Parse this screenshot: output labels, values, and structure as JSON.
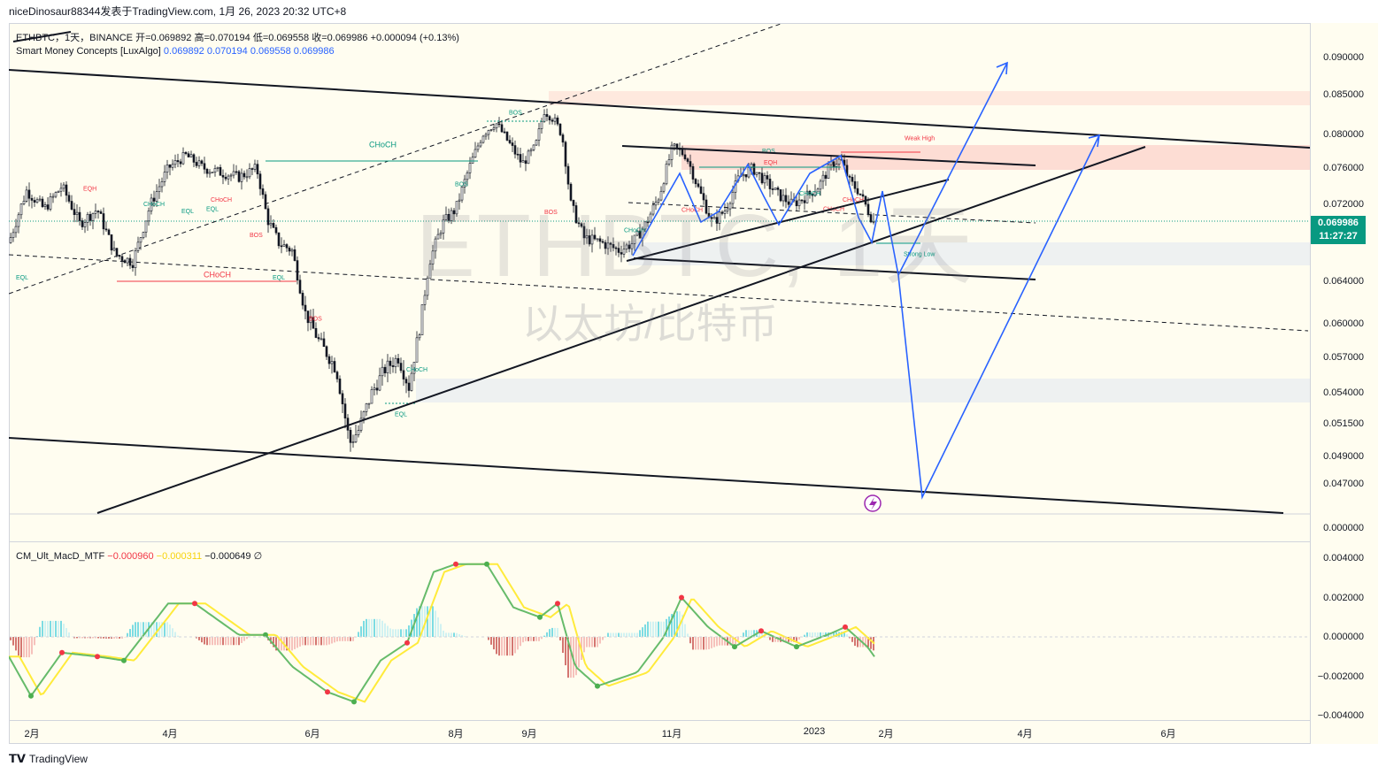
{
  "header": {
    "text": "niceDinosaur88344发表于TradingView.com,  1月 26, 2023 20:32 UTC+8"
  },
  "legend": {
    "symbol": "ETHBTC，1天，BINANCE",
    "open_label": "开=0.069892",
    "high_label": "高=0.070194",
    "low_label": "低=0.069558",
    "close_label": "收=0.069986",
    "change": "+0.000094 (+0.13%)",
    "indicator_name": "Smart Money Concepts [LuxAlgo]",
    "indicator_values": [
      "0.069892",
      "0.070194",
      "0.069558",
      "0.069986"
    ],
    "macd_name": "CM_Ult_MacD_MTF",
    "macd_values": [
      "−0.000960",
      "−0.000311",
      "−0.000649",
      "∅"
    ]
  },
  "watermark": {
    "symbol": "ETHBTC, 1天",
    "description": "以太坊/比特币"
  },
  "current_price": {
    "price": "0.069986",
    "countdown": "11:27:27"
  },
  "colors": {
    "up": "#089981",
    "down": "#f23645",
    "projection": "#2962ff",
    "background": "#fffdf0"
  },
  "footer": {
    "brand": "TradingView"
  },
  "chart_data": {
    "type": "candlestick",
    "price_ticks": [
      "0.090000",
      "0.085000",
      "0.080000",
      "0.076000",
      "0.072000",
      "0.064000",
      "0.060000",
      "0.057000",
      "0.054000",
      "0.051500",
      "0.049000",
      "0.047000",
      "0.000000"
    ],
    "macd_ticks": [
      "0.004000",
      "0.002000",
      "0.000000",
      "−0.002000",
      "−0.004000"
    ],
    "time_ticks": [
      "2月",
      "4月",
      "6月",
      "8月",
      "9月",
      "11月",
      "2023",
      "2月",
      "4月",
      "6月"
    ],
    "smc_labels": [
      {
        "text": "CHoCH",
        "kind": "bull",
        "price": 0.0785
      },
      {
        "text": "CHoCH",
        "kind": "bear",
        "price": 0.0644
      },
      {
        "text": "BOS",
        "kind": "bull",
        "price": 0.0825
      },
      {
        "text": "BOS",
        "kind": "bull",
        "price": 0.074
      },
      {
        "text": "BOS",
        "kind": "bear",
        "price": 0.0603
      },
      {
        "text": "BOS",
        "kind": "bear",
        "price": 0.0686
      },
      {
        "text": "BOS",
        "kind": "bear",
        "price": 0.071
      },
      {
        "text": "BOS",
        "kind": "bull",
        "price": 0.0778
      },
      {
        "text": "CHoCH",
        "kind": "bull",
        "price": 0.0558
      },
      {
        "text": "CHoCH",
        "kind": "bull",
        "price": 0.0718
      },
      {
        "text": "CHoCH",
        "kind": "bear",
        "price": 0.0712
      },
      {
        "text": "CHoCH",
        "kind": "bear",
        "price": 0.0723
      },
      {
        "text": "CHoCH",
        "kind": "bull",
        "price": 0.073
      },
      {
        "text": "CHoCH",
        "kind": "bull",
        "price": 0.0691
      },
      {
        "text": "CHoCH",
        "kind": "bear",
        "price": 0.0713
      },
      {
        "text": "CHoCH",
        "kind": "bear",
        "price": 0.0723
      },
      {
        "text": "EQH",
        "kind": "bear",
        "price": 0.0735
      },
      {
        "text": "EQH",
        "kind": "bear",
        "price": 0.0764
      },
      {
        "text": "EQL",
        "kind": "bull",
        "price": 0.0642
      },
      {
        "text": "EQL",
        "kind": "bull",
        "price": 0.0711
      },
      {
        "text": "EQL",
        "kind": "bull",
        "price": 0.0713
      },
      {
        "text": "EQL",
        "kind": "bull",
        "price": 0.0642
      },
      {
        "text": "EQL",
        "kind": "bull",
        "price": 0.0521
      },
      {
        "text": "Weak High",
        "kind": "bear",
        "price": 0.0793
      },
      {
        "text": "Strong Low",
        "kind": "bull",
        "price": 0.0666
      }
    ]
  }
}
